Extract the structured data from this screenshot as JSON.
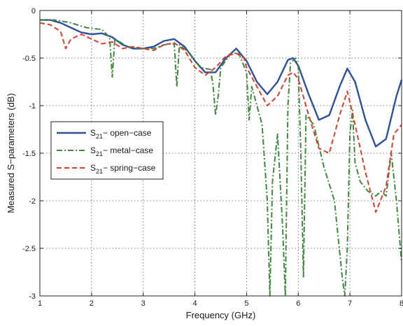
{
  "chart_data": {
    "type": "line",
    "xlabel": "Frequency (GHz)",
    "ylabel": "Measured S−parameters (dB)",
    "xlim": [
      1,
      8
    ],
    "ylim": [
      -3,
      0
    ],
    "xticks": [
      "1",
      "2",
      "3",
      "4",
      "5",
      "6",
      "7",
      "8"
    ],
    "yticks": [
      "0",
      "-0.5",
      "-1",
      "-1.5",
      "-2",
      "-2.5",
      "-3"
    ],
    "grid": true,
    "legend_position": "center-left",
    "series": [
      {
        "name": "S21 − open−case",
        "legend_main": "S",
        "legend_sub": "21",
        "legend_rest": "− open−case",
        "color": "#2f4fa0",
        "style": "solid",
        "points": [
          [
            1.0,
            -0.1
          ],
          [
            1.2,
            -0.1
          ],
          [
            1.4,
            -0.13
          ],
          [
            1.6,
            -0.18
          ],
          [
            1.8,
            -0.23
          ],
          [
            2.0,
            -0.25
          ],
          [
            2.2,
            -0.24
          ],
          [
            2.4,
            -0.28
          ],
          [
            2.6,
            -0.36
          ],
          [
            2.8,
            -0.4
          ],
          [
            3.0,
            -0.4
          ],
          [
            3.2,
            -0.38
          ],
          [
            3.4,
            -0.32
          ],
          [
            3.6,
            -0.3
          ],
          [
            3.8,
            -0.38
          ],
          [
            4.0,
            -0.53
          ],
          [
            4.2,
            -0.65
          ],
          [
            4.4,
            -0.65
          ],
          [
            4.6,
            -0.5
          ],
          [
            4.8,
            -0.4
          ],
          [
            5.0,
            -0.53
          ],
          [
            5.2,
            -0.75
          ],
          [
            5.4,
            -0.88
          ],
          [
            5.6,
            -0.75
          ],
          [
            5.8,
            -0.52
          ],
          [
            5.9,
            -0.5
          ],
          [
            6.0,
            -0.58
          ],
          [
            6.2,
            -0.88
          ],
          [
            6.4,
            -1.15
          ],
          [
            6.6,
            -1.1
          ],
          [
            6.8,
            -0.8
          ],
          [
            6.95,
            -0.61
          ],
          [
            7.1,
            -0.75
          ],
          [
            7.3,
            -1.15
          ],
          [
            7.5,
            -1.43
          ],
          [
            7.7,
            -1.35
          ],
          [
            7.9,
            -0.9
          ],
          [
            8.0,
            -0.73
          ]
        ]
      },
      {
        "name": "S21 − metal−case",
        "legend_main": "S",
        "legend_sub": "21",
        "legend_rest": "− metal−case",
        "color": "#3d8a3d",
        "style": "dashdot",
        "points": [
          [
            1.0,
            -0.1
          ],
          [
            1.3,
            -0.1
          ],
          [
            1.6,
            -0.13
          ],
          [
            1.9,
            -0.18
          ],
          [
            2.2,
            -0.2
          ],
          [
            2.35,
            -0.28
          ],
          [
            2.4,
            -0.7
          ],
          [
            2.45,
            -0.3
          ],
          [
            2.7,
            -0.38
          ],
          [
            3.0,
            -0.4
          ],
          [
            3.2,
            -0.4
          ],
          [
            3.4,
            -0.36
          ],
          [
            3.6,
            -0.35
          ],
          [
            3.65,
            -0.8
          ],
          [
            3.7,
            -0.36
          ],
          [
            3.9,
            -0.45
          ],
          [
            4.1,
            -0.6
          ],
          [
            4.3,
            -0.62
          ],
          [
            4.35,
            -0.78
          ],
          [
            4.4,
            -1.1
          ],
          [
            4.45,
            -0.9
          ],
          [
            4.5,
            -0.6
          ],
          [
            4.7,
            -0.45
          ],
          [
            4.85,
            -0.45
          ],
          [
            5.0,
            -0.65
          ],
          [
            5.05,
            -1.15
          ],
          [
            5.1,
            -0.8
          ],
          [
            5.3,
            -1.2
          ],
          [
            5.4,
            -2.0
          ],
          [
            5.45,
            -3.0
          ],
          [
            5.5,
            -1.8
          ],
          [
            5.6,
            -1.3
          ],
          [
            5.7,
            -2.3
          ],
          [
            5.75,
            -3.0
          ],
          [
            5.8,
            -1.0
          ],
          [
            5.85,
            -0.55
          ],
          [
            5.95,
            -0.5
          ],
          [
            6.0,
            -0.6
          ],
          [
            6.05,
            -1.5
          ],
          [
            6.1,
            -2.8
          ],
          [
            6.15,
            -1.1
          ],
          [
            6.3,
            -1.2
          ],
          [
            6.5,
            -1.65
          ],
          [
            6.7,
            -2.0
          ],
          [
            6.85,
            -2.8
          ],
          [
            6.9,
            -3.0
          ],
          [
            6.95,
            -2.5
          ],
          [
            7.0,
            -1.3
          ],
          [
            7.05,
            -1.05
          ],
          [
            7.1,
            -1.6
          ],
          [
            7.2,
            -1.8
          ],
          [
            7.35,
            -1.9
          ],
          [
            7.5,
            -1.95
          ],
          [
            7.6,
            -1.9
          ],
          [
            7.7,
            -1.95
          ],
          [
            7.8,
            -1.5
          ],
          [
            7.9,
            -2.0
          ],
          [
            8.0,
            -2.65
          ]
        ]
      },
      {
        "name": "S21 − spring−case",
        "legend_main": "S",
        "legend_sub": "21",
        "legend_rest": "− spring−case",
        "color": "#e23c2a",
        "style": "dashed",
        "points": [
          [
            1.0,
            -0.13
          ],
          [
            1.2,
            -0.15
          ],
          [
            1.4,
            -0.22
          ],
          [
            1.5,
            -0.4
          ],
          [
            1.6,
            -0.3
          ],
          [
            1.8,
            -0.25
          ],
          [
            2.0,
            -0.3
          ],
          [
            2.2,
            -0.35
          ],
          [
            2.4,
            -0.33
          ],
          [
            2.6,
            -0.4
          ],
          [
            2.8,
            -0.38
          ],
          [
            3.0,
            -0.4
          ],
          [
            3.2,
            -0.42
          ],
          [
            3.4,
            -0.36
          ],
          [
            3.6,
            -0.34
          ],
          [
            3.8,
            -0.42
          ],
          [
            4.0,
            -0.6
          ],
          [
            4.2,
            -0.68
          ],
          [
            4.4,
            -0.6
          ],
          [
            4.6,
            -0.48
          ],
          [
            4.8,
            -0.45
          ],
          [
            4.95,
            -0.5
          ],
          [
            5.0,
            -0.6
          ],
          [
            5.2,
            -0.8
          ],
          [
            5.4,
            -1.0
          ],
          [
            5.6,
            -0.9
          ],
          [
            5.8,
            -0.68
          ],
          [
            5.9,
            -0.65
          ],
          [
            6.0,
            -0.72
          ],
          [
            6.2,
            -1.1
          ],
          [
            6.4,
            -1.45
          ],
          [
            6.6,
            -1.5
          ],
          [
            6.8,
            -1.1
          ],
          [
            6.95,
            -0.85
          ],
          [
            7.1,
            -1.2
          ],
          [
            7.3,
            -1.7
          ],
          [
            7.5,
            -2.12
          ],
          [
            7.7,
            -1.85
          ],
          [
            7.85,
            -1.3
          ],
          [
            8.0,
            -1.2
          ]
        ]
      }
    ]
  }
}
